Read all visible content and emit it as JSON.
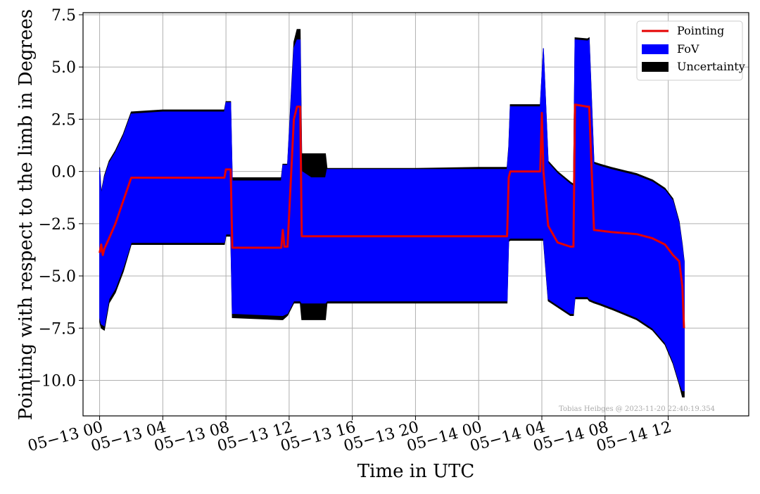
{
  "chart_data": {
    "type": "area",
    "xlabel": "Time in UTC",
    "ylabel": "Pointing with respect to the limb in Degrees",
    "x_unit": "hours",
    "xlim": [
      -1.05,
      41.1
    ],
    "ylim": [
      -11.7,
      7.6
    ],
    "x_ticks": [
      {
        "value": 0,
        "label": "05−13 00"
      },
      {
        "value": 4,
        "label": "05−13 04"
      },
      {
        "value": 8,
        "label": "05−13 08"
      },
      {
        "value": 12,
        "label": "05−13 12"
      },
      {
        "value": 16,
        "label": "05−13 16"
      },
      {
        "value": 20,
        "label": "05−13 20"
      },
      {
        "value": 24,
        "label": "05−14 00"
      },
      {
        "value": 28,
        "label": "05−14 04"
      },
      {
        "value": 32,
        "label": "05−14 08"
      },
      {
        "value": 36,
        "label": "05−14 12"
      }
    ],
    "y_ticks": [
      {
        "value": 7.5,
        "label": "7.5"
      },
      {
        "value": 5.0,
        "label": "5.0"
      },
      {
        "value": 2.5,
        "label": "2.5"
      },
      {
        "value": 0.0,
        "label": "0.0"
      },
      {
        "value": -2.5,
        "label": "−2.5"
      },
      {
        "value": -5.0,
        "label": "−5.0"
      },
      {
        "value": -7.5,
        "label": "−7.5"
      },
      {
        "value": -10.0,
        "label": "−10.0"
      }
    ],
    "grid": true,
    "legend_position": "top-right",
    "series": [
      {
        "name": "Uncertainty",
        "kind": "band",
        "color": "#000000",
        "x": [
          0.0,
          0.1,
          0.3,
          0.6,
          1.0,
          1.5,
          2.0,
          4.0,
          7.9,
          8.0,
          8.3,
          8.4,
          11.5,
          11.6,
          11.9,
          12.3,
          12.5,
          12.7,
          12.8,
          13.4,
          14.3,
          14.4,
          16.0,
          20.0,
          24.0,
          25.8,
          25.9,
          26.0,
          27.0,
          27.9,
          28.1,
          28.4,
          29.0,
          29.8,
          30.0,
          30.1,
          30.9,
          31.0,
          31.3,
          31.7,
          32.4,
          34.0,
          35.0,
          35.8,
          36.3,
          36.7,
          36.9,
          37.0,
          37.02
        ],
        "upper": [
          0.2,
          -1.0,
          -0.2,
          0.5,
          1.0,
          1.8,
          2.85,
          2.95,
          2.95,
          3.35,
          3.35,
          -0.3,
          -0.3,
          0.35,
          0.35,
          6.2,
          6.8,
          6.8,
          0.85,
          0.85,
          0.85,
          0.15,
          0.15,
          0.15,
          0.2,
          0.2,
          1.2,
          3.2,
          3.2,
          3.2,
          5.9,
          0.5,
          0.0,
          -0.5,
          -0.6,
          6.4,
          6.35,
          6.4,
          0.45,
          0.35,
          0.2,
          -0.1,
          -0.4,
          -0.8,
          -1.3,
          -2.4,
          -3.5,
          -4.2,
          -4.3
        ],
        "lower": [
          -7.2,
          -7.5,
          -7.6,
          -6.3,
          -5.8,
          -4.8,
          -3.5,
          -3.5,
          -3.5,
          -3.1,
          -3.1,
          -7.0,
          -7.1,
          -7.1,
          -6.9,
          -6.3,
          -6.3,
          -6.3,
          -7.1,
          -7.1,
          -7.1,
          -6.3,
          -6.3,
          -6.3,
          -6.3,
          -6.3,
          -3.35,
          -3.3,
          -3.3,
          -3.3,
          -3.3,
          -6.2,
          -6.5,
          -6.9,
          -6.9,
          -6.1,
          -6.1,
          -6.2,
          -6.3,
          -6.4,
          -6.6,
          -7.1,
          -7.6,
          -8.3,
          -9.2,
          -10.2,
          -10.8,
          -10.8,
          -10.8
        ]
      },
      {
        "name": "FoV",
        "kind": "band",
        "color": "#0000ff",
        "x": [
          0.0,
          0.1,
          0.3,
          0.6,
          1.0,
          1.5,
          2.0,
          4.0,
          7.9,
          8.0,
          8.3,
          8.4,
          11.5,
          11.6,
          11.9,
          12.3,
          12.5,
          12.7,
          12.8,
          13.4,
          14.3,
          14.4,
          16.0,
          20.0,
          24.0,
          25.8,
          25.9,
          26.0,
          27.0,
          27.9,
          28.1,
          28.4,
          29.0,
          29.8,
          30.0,
          30.1,
          30.9,
          31.0,
          31.3,
          31.7,
          32.4,
          34.0,
          35.0,
          35.8,
          36.3,
          36.7,
          36.9,
          37.0,
          37.02
        ],
        "upper": [
          0.1,
          -1.1,
          -0.3,
          0.4,
          0.9,
          1.7,
          2.75,
          2.85,
          2.85,
          3.3,
          3.3,
          -0.45,
          -0.45,
          0.3,
          0.3,
          5.9,
          6.3,
          6.3,
          0.0,
          -0.3,
          -0.3,
          0.1,
          0.1,
          0.1,
          0.1,
          0.1,
          1.1,
          3.1,
          3.1,
          3.1,
          5.9,
          0.4,
          -0.1,
          -0.6,
          -0.7,
          6.3,
          6.25,
          6.3,
          0.35,
          0.25,
          0.1,
          -0.2,
          -0.5,
          -0.9,
          -1.4,
          -2.5,
          -3.6,
          -4.3,
          -4.3
        ],
        "lower": [
          -7.0,
          -7.3,
          -7.4,
          -6.1,
          -5.6,
          -4.6,
          -3.4,
          -3.4,
          -3.4,
          -3.0,
          -3.0,
          -6.8,
          -6.9,
          -6.9,
          -6.8,
          -6.2,
          -6.2,
          -6.2,
          -6.3,
          -6.3,
          -6.3,
          -6.2,
          -6.2,
          -6.2,
          -6.2,
          -6.2,
          -3.25,
          -3.2,
          -3.2,
          -3.2,
          -3.2,
          -6.1,
          -6.4,
          -6.8,
          -6.8,
          -6.0,
          -6.0,
          -6.1,
          -6.2,
          -6.3,
          -6.5,
          -7.0,
          -7.5,
          -8.2,
          -9.1,
          -10.1,
          -10.5,
          -10.5,
          -10.5
        ]
      },
      {
        "name": "Pointing",
        "kind": "line",
        "color": "#e50000",
        "x": [
          0.0,
          0.1,
          0.2,
          0.3,
          0.6,
          1.0,
          1.5,
          2.0,
          4.0,
          7.9,
          8.0,
          8.3,
          8.4,
          11.5,
          11.6,
          11.7,
          11.9,
          12.3,
          12.5,
          12.7,
          12.8,
          20.0,
          25.8,
          25.9,
          26.0,
          27.9,
          28.0,
          28.1,
          28.4,
          29.0,
          29.8,
          30.0,
          30.1,
          30.9,
          31.0,
          31.3,
          32.4,
          34.0,
          35.0,
          35.8,
          36.3,
          36.7,
          36.9,
          37.0
        ],
        "y": [
          -3.9,
          -3.5,
          -4.0,
          -3.7,
          -3.2,
          -2.5,
          -1.4,
          -0.3,
          -0.3,
          -0.3,
          0.1,
          0.1,
          -3.65,
          -3.65,
          -2.8,
          -3.6,
          -3.6,
          2.5,
          3.1,
          3.1,
          -3.1,
          -3.1,
          -3.1,
          -0.3,
          0.0,
          0.0,
          2.8,
          0.0,
          -2.6,
          -3.4,
          -3.6,
          -3.6,
          3.2,
          3.1,
          3.1,
          -2.8,
          -2.9,
          -3.0,
          -3.2,
          -3.5,
          -4.0,
          -4.3,
          -5.5,
          -7.5
        ]
      }
    ],
    "legend": [
      {
        "name": "Pointing",
        "symbol": "line",
        "color": "#e50000"
      },
      {
        "name": "FoV",
        "symbol": "patch",
        "color": "#0000ff"
      },
      {
        "name": "Uncertainty",
        "symbol": "patch",
        "color": "#000000"
      }
    ],
    "annotation": "Tobias Heibges @ 2023-11-20 22:40:19.354"
  }
}
